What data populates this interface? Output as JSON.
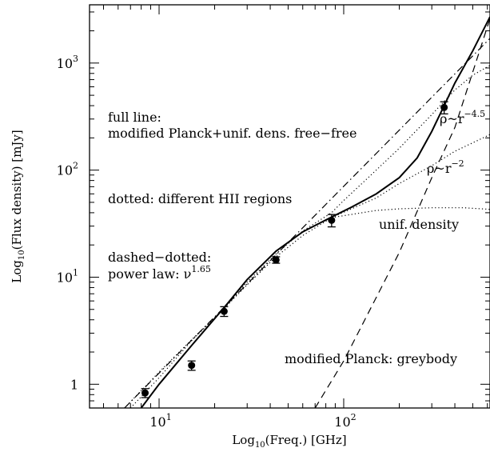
{
  "chart_data": {
    "type": "line",
    "log_x": true,
    "log_y": true,
    "xlim": [
      4.2,
      620
    ],
    "ylim": [
      0.6,
      3500
    ],
    "xlabel": {
      "prefix": "Log",
      "sub": "10",
      "suffix": "(Freq.) [GHz]"
    },
    "ylabel": {
      "prefix": "Log",
      "sub": "10",
      "suffix": "(Flux density) [mJy]"
    },
    "x_ticks": [
      {
        "value": 10,
        "base": "10",
        "exp": "1"
      },
      {
        "value": 100,
        "base": "10",
        "exp": "2"
      }
    ],
    "y_ticks": [
      {
        "value": 1,
        "base": "1",
        "exp": ""
      },
      {
        "value": 10,
        "base": "10",
        "exp": "1"
      },
      {
        "value": 100,
        "base": "10",
        "exp": "2"
      },
      {
        "value": 1000,
        "base": "10",
        "exp": "3"
      }
    ],
    "measurements": [
      {
        "x": 8.4,
        "y": 0.83,
        "err": 0.08
      },
      {
        "x": 15.0,
        "y": 1.5,
        "err": 0.15
      },
      {
        "x": 22.5,
        "y": 4.8,
        "err": 0.5
      },
      {
        "x": 43.0,
        "y": 14.5,
        "err": 1.0
      },
      {
        "x": 86.0,
        "y": 34.0,
        "err": 4.5
      },
      {
        "x": 350.0,
        "y": 385.0,
        "err": 50.0
      }
    ],
    "series": [
      {
        "style": "solid",
        "points": [
          [
            8.0,
            0.6
          ],
          [
            10,
            1.0
          ],
          [
            15,
            2.3
          ],
          [
            22.5,
            5.2
          ],
          [
            30,
            9.5
          ],
          [
            43,
            17.5
          ],
          [
            60,
            26.5
          ],
          [
            86,
            36.5
          ],
          [
            110,
            45
          ],
          [
            150,
            60
          ],
          [
            200,
            85
          ],
          [
            250,
            130
          ],
          [
            300,
            230
          ],
          [
            350,
            400
          ],
          [
            400,
            650
          ],
          [
            500,
            1300
          ],
          [
            620,
            2700
          ]
        ]
      },
      {
        "style": "dotted",
        "points": [
          [
            6.5,
            0.6
          ],
          [
            10,
            1.3
          ],
          [
            15,
            2.6
          ],
          [
            22.5,
            5.1
          ],
          [
            30,
            8.5
          ],
          [
            43,
            15.5
          ],
          [
            60,
            24.5
          ],
          [
            86,
            36
          ],
          [
            150,
            42
          ],
          [
            200,
            43.5
          ],
          [
            300,
            44.5
          ],
          [
            450,
            44.5
          ],
          [
            620,
            43
          ]
        ]
      },
      {
        "style": "dotted",
        "points": [
          [
            86,
            36
          ],
          [
            150,
            55
          ],
          [
            200,
            75
          ],
          [
            300,
            110
          ],
          [
            400,
            150
          ],
          [
            500,
            180
          ],
          [
            620,
            215
          ]
        ]
      },
      {
        "style": "dotted",
        "points": [
          [
            7.0,
            0.6
          ],
          [
            10,
            1.15
          ],
          [
            15,
            2.55
          ],
          [
            22.5,
            5.1
          ],
          [
            30,
            9
          ],
          [
            43,
            16.5
          ],
          [
            60,
            27
          ],
          [
            86,
            40
          ],
          [
            100,
            52
          ],
          [
            150,
            100
          ],
          [
            200,
            160
          ],
          [
            300,
            330
          ],
          [
            400,
            560
          ],
          [
            500,
            770
          ],
          [
            620,
            950
          ]
        ]
      },
      {
        "style": "dashdot",
        "points": [
          [
            6.5,
            0.6
          ],
          [
            620,
            1700
          ]
        ]
      },
      {
        "style": "dashed",
        "points": [
          [
            70,
            0.6
          ],
          [
            100,
            1.65
          ],
          [
            200,
            17
          ],
          [
            300,
            85
          ],
          [
            400,
            250
          ],
          [
            620,
            2600
          ]
        ]
      }
    ],
    "annotations": {
      "full_line_1": "full line:",
      "full_line_2": "modified Planck+unif. dens. free−free",
      "dotted": "dotted: different HII regions",
      "dashdot_1": "dashed−dotted:",
      "dashdot_2": "power law: ν",
      "dashdot_exp": "1.65",
      "unif": "unif. density",
      "planck": "modified Planck: greybody",
      "rho2": "ρ~r",
      "rho2_exp": "−2",
      "rho45": "ρ~r",
      "rho45_exp": "−4.5"
    }
  }
}
